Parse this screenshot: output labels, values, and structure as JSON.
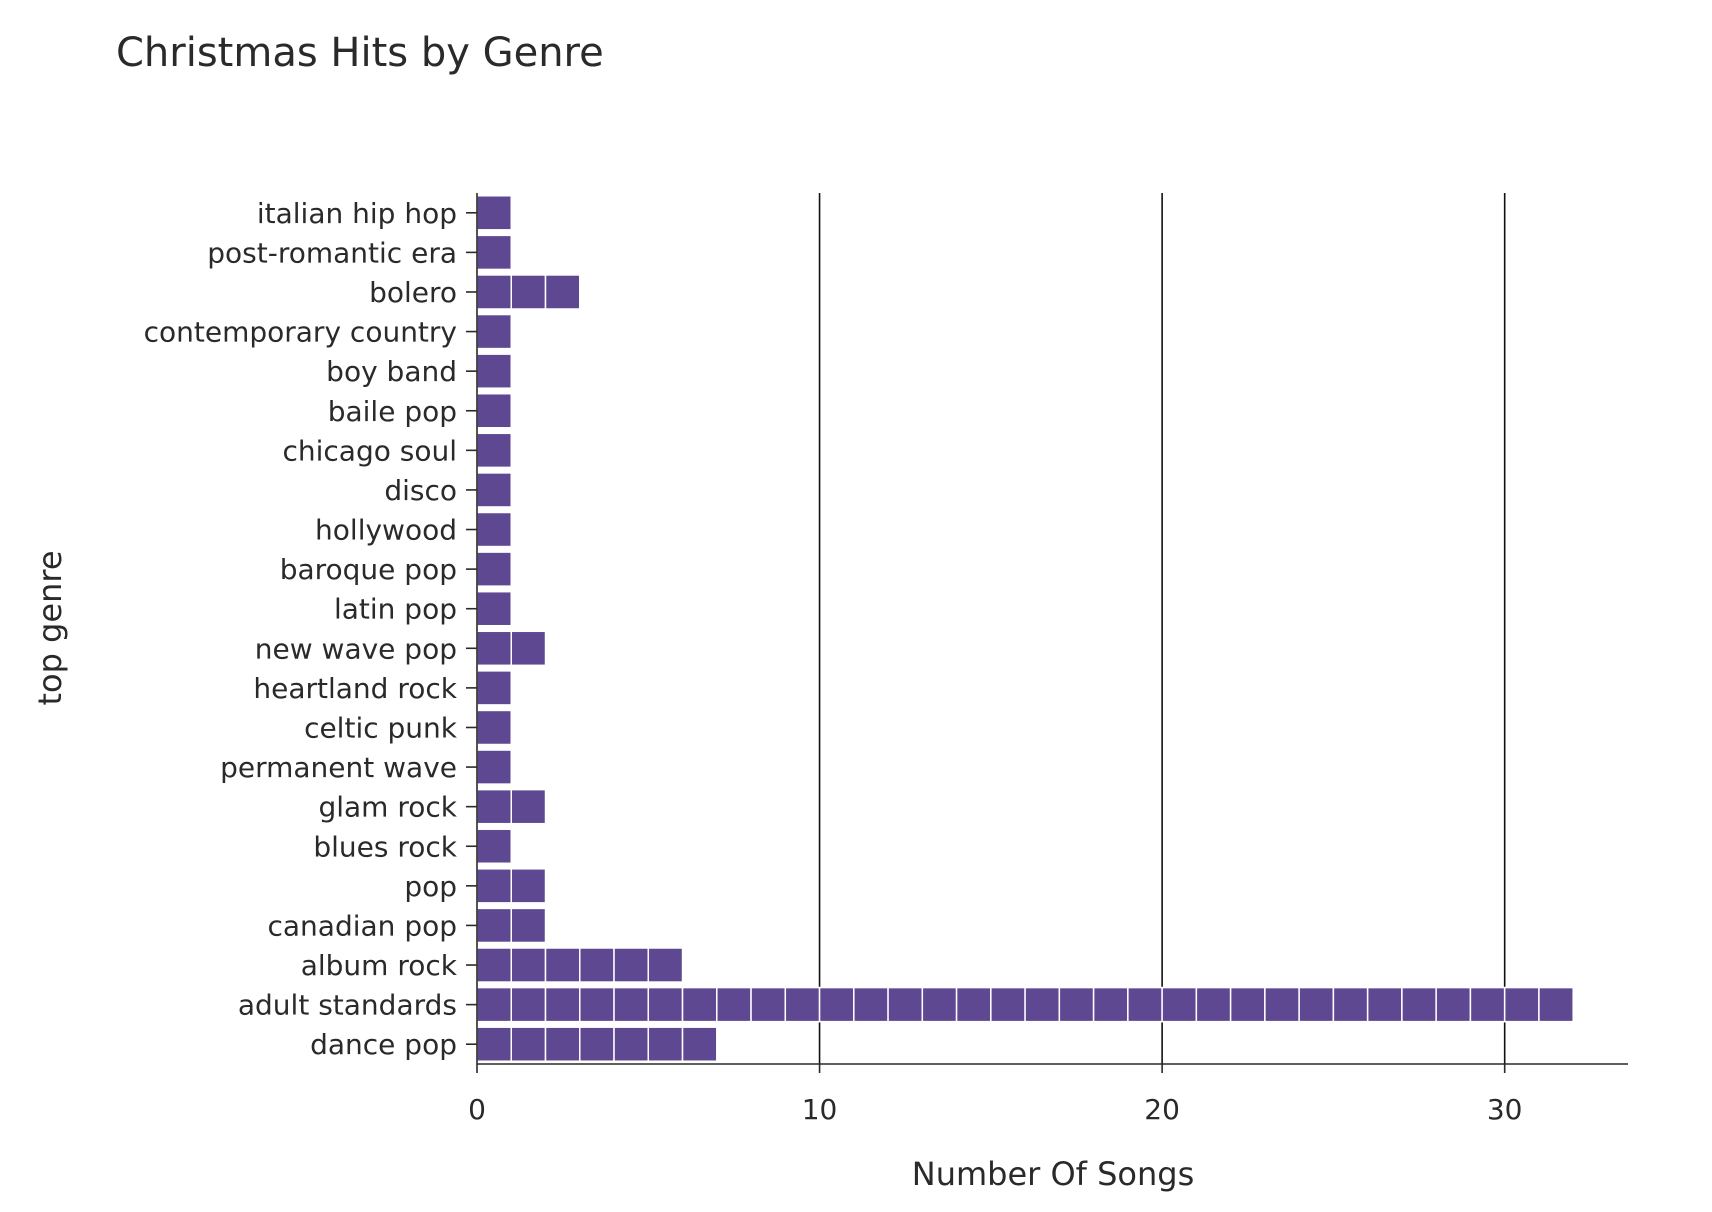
{
  "chart_data": {
    "type": "bar",
    "orientation": "horizontal",
    "style": "stacked unit segments (one segment per song)",
    "title": "Christmas Hits by Genre",
    "xlabel": "Number Of Songs",
    "ylabel": "top genre",
    "xlim": [
      0,
      33.6
    ],
    "xticks": [
      0,
      10,
      20,
      30
    ],
    "grid": "vertical",
    "legend": "none",
    "bar_color": "#5e4892",
    "segment_border_color": "#ffffff",
    "categories": [
      "italian hip hop",
      "post-romantic era",
      "bolero",
      "contemporary country",
      "boy band",
      "baile pop",
      "chicago soul",
      "disco",
      "hollywood",
      "baroque pop",
      "latin pop",
      "new wave pop",
      "heartland rock",
      "celtic punk",
      "permanent wave",
      "glam rock",
      "blues rock",
      "pop",
      "canadian pop",
      "album rock",
      "adult standards",
      "dance pop"
    ],
    "values": [
      1,
      1,
      3,
      1,
      1,
      1,
      1,
      1,
      1,
      1,
      1,
      2,
      1,
      1,
      1,
      2,
      1,
      2,
      2,
      6,
      32,
      7
    ]
  }
}
